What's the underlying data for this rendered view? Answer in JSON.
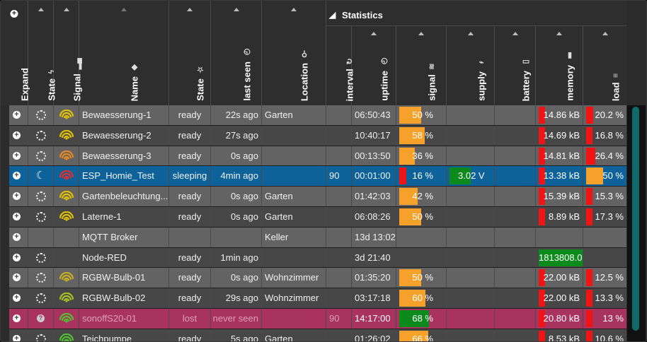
{
  "header": {
    "expand": "Expand",
    "state": "State",
    "signal": "Signal",
    "name": "Name",
    "state2": "State",
    "last_seen": "last seen",
    "location": "Location",
    "statistics": "Statistics",
    "stats_cols": [
      "interval",
      "uptime",
      "signal",
      "supply",
      "battery",
      "memory",
      "load"
    ]
  },
  "colors": {
    "orange": "#f6a12a",
    "red": "#f01414",
    "green": "#0c8a1c",
    "sleep_row": "#0d6299",
    "lost_row": "#a9335f"
  },
  "rows": [
    {
      "state_icon": "spinner-icon",
      "signal_color": "#e0c000",
      "name": "Bewaesserung-1",
      "state": "ready",
      "last_seen": "22s ago",
      "location": "Garten",
      "interval": "",
      "uptime": "06:50:43",
      "signal": "50 %",
      "signal_level": 0.5,
      "signal_color_bar": "orange",
      "supply": "",
      "memory": "14.86 kB",
      "load": "20.2 %",
      "style": "r0"
    },
    {
      "state_icon": "spinner-icon",
      "signal_color": "#e0c000",
      "name": "Bewaesserung-2",
      "state": "ready",
      "last_seen": "27s ago",
      "location": "",
      "interval": "",
      "uptime": "10:40:17",
      "signal": "58 %",
      "signal_level": 0.58,
      "signal_color_bar": "orange",
      "supply": "",
      "memory": "14.69 kB",
      "load": "16.8 %",
      "style": "r1"
    },
    {
      "state_icon": "spinner-icon",
      "signal_color": "#e88a20",
      "name": "Bewaesserung-3",
      "state": "ready",
      "last_seen": "0s ago",
      "location": "",
      "interval": "",
      "uptime": "00:13:50",
      "signal": "36 %",
      "signal_level": 0.36,
      "signal_color_bar": "orange",
      "supply": "",
      "memory": "14.81 kB",
      "load": "26.4 %",
      "style": "r0"
    },
    {
      "state_icon": "moon-icon",
      "signal_color": "#e03030",
      "name": "ESP_Homie_Test",
      "state": "sleeping",
      "last_seen": "4min ago",
      "location": "",
      "interval": "90",
      "uptime": "00:01:00",
      "signal": "16 %",
      "signal_level": 0.16,
      "signal_color_bar": "red",
      "supply": "3.02 V",
      "memory": "13.38 kB",
      "load": "50 %",
      "style": "rsleep"
    },
    {
      "state_icon": "spinner-icon",
      "signal_color": "#e0c000",
      "name": "Gartenbeleuchtung...",
      "state": "ready",
      "last_seen": "0s ago",
      "location": "Garten",
      "interval": "",
      "uptime": "01:42:03",
      "signal": "42 %",
      "signal_level": 0.42,
      "signal_color_bar": "orange",
      "supply": "",
      "memory": "15.39 kB",
      "load": "15.3 %",
      "style": "r0"
    },
    {
      "state_icon": "spinner-icon",
      "signal_color": "#e0c000",
      "name": "Laterne-1",
      "state": "ready",
      "last_seen": "0s ago",
      "location": "Garten",
      "interval": "",
      "uptime": "06:08:26",
      "signal": "50 %",
      "signal_level": 0.5,
      "signal_color_bar": "orange",
      "supply": "",
      "memory": "8.89 kB",
      "load": "17.3 %",
      "style": "r1"
    },
    {
      "state_icon": "",
      "signal_color": "",
      "name": "MQTT Broker",
      "state": "",
      "last_seen": "",
      "location": "Keller",
      "interval": "",
      "uptime": "13d 13:02",
      "signal": "",
      "signal_level": 0,
      "signal_color_bar": "",
      "supply": "",
      "memory": "",
      "load": "",
      "style": "r0"
    },
    {
      "state_icon": "spinner-icon",
      "signal_color": "",
      "name": "Node-RED",
      "state": "ready",
      "last_seen": "1min ago",
      "location": "",
      "interval": "",
      "uptime": "3d 21:40",
      "signal": "",
      "signal_level": 0,
      "signal_color_bar": "",
      "supply": "",
      "memory": "1813808.00",
      "load": "",
      "style": "r1"
    },
    {
      "state_icon": "spinner-icon",
      "signal_color": "#c8b020",
      "name": "RGBW-Bulb-01",
      "state": "ready",
      "last_seen": "0s ago",
      "location": "Wohnzimmer",
      "interval": "",
      "uptime": "01:35:20",
      "signal": "50 %",
      "signal_level": 0.5,
      "signal_color_bar": "orange",
      "supply": "",
      "memory": "22.00 kB",
      "load": "12.5 %",
      "style": "r0"
    },
    {
      "state_icon": "spinner-icon",
      "signal_color": "#a8c020",
      "name": "RGBW-Bulb-02",
      "state": "ready",
      "last_seen": "29s ago",
      "location": "Wohnzimmer",
      "interval": "",
      "uptime": "03:17:18",
      "signal": "60 %",
      "signal_level": 0.6,
      "signal_color_bar": "orange",
      "supply": "",
      "memory": "22.00 kB",
      "load": "13.3 %",
      "style": "r1"
    },
    {
      "state_icon": "question-icon",
      "signal_color": "#50c030",
      "name": "sonoffS20-01",
      "state": "lost",
      "last_seen": "never seen",
      "location": "",
      "interval": "90",
      "uptime": "14:17:00",
      "signal": "68 %",
      "signal_level": 0.68,
      "signal_color_bar": "green",
      "supply": "",
      "memory": "20.80 kB",
      "load": "13 %",
      "style": "rlost"
    },
    {
      "state_icon": "spinner-icon",
      "signal_color": "#50c030",
      "name": "Teichpumpe",
      "state": "ready",
      "last_seen": "5s ago",
      "location": "Garten",
      "interval": "",
      "uptime": "01:26:02",
      "signal": "66 %",
      "signal_level": 0.66,
      "signal_color_bar": "orange",
      "supply": "",
      "memory": "8.53 kB",
      "load": "10.6 %",
      "style": "r1"
    }
  ]
}
